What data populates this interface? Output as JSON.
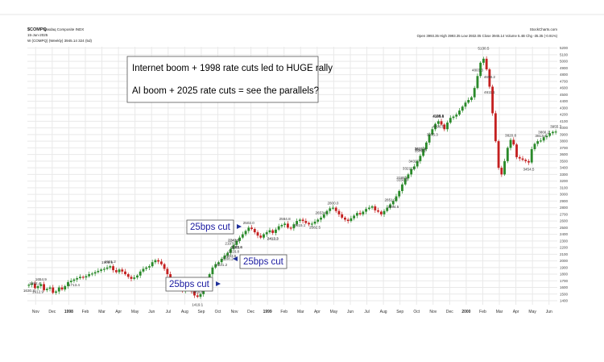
{
  "header": {
    "symbol": "$COMPQ",
    "exchange": "Nasdaq Composite INDX",
    "date": "15-Jun-2025",
    "ohlc": "Open 3993.35  High 3993.35  Low 3932.05  Close 3945.14  Volume 5.4B  Chg -35.35 (-0.91%)",
    "indicator": "W (COMPQ) (Weekly) 3945.14  324 (5d)",
    "source": "StockCharts.com"
  },
  "annotation": {
    "line1": "Internet boom + 1998 rate cuts led to HUGE rally",
    "line2": "AI boom + 2025 rate cuts = see the parallels?"
  },
  "cut_labels": [
    "25bps cut",
    "25bps cut",
    "25bps cut"
  ],
  "colors": {
    "up": "#2a8a2a",
    "down": "#c42020",
    "cut_text": "#1a1aa0",
    "arrow": "#1f2f9a"
  },
  "chart_data": {
    "type": "candlestick",
    "title": "",
    "ylim": [
      1340,
      5220
    ],
    "y_ticks": [
      1400,
      1500,
      1600,
      1700,
      1800,
      1900,
      2000,
      2100,
      2200,
      2300,
      2400,
      2500,
      2600,
      2700,
      2800,
      2900,
      3000,
      3100,
      3200,
      3300,
      3400,
      3500,
      3600,
      3700,
      3800,
      3900,
      4000,
      4100,
      4200,
      4300,
      4400,
      4500,
      4600,
      4700,
      4800,
      4900,
      5000,
      5100,
      5200
    ],
    "x_ticks": [
      "Nov",
      "Dec",
      "1998",
      "Feb",
      "Mar",
      "Apr",
      "May",
      "Jun",
      "Jul",
      "Aug",
      "Sep",
      "Oct",
      "Nov",
      "Dec",
      "1999",
      "Feb",
      "Mar",
      "Apr",
      "May",
      "Jun",
      "Jul",
      "Aug",
      "Sep",
      "Oct",
      "Nov",
      "Dec",
      "2000",
      "Feb",
      "Mar",
      "Apr",
      "May",
      "Jun"
    ],
    "x_ticks_bold": [
      "1998",
      "1999",
      "2000"
    ],
    "weekly_close": [
      1640,
      1660,
      1590,
      1620,
      1650,
      1560,
      1580,
      1600,
      1520,
      1540,
      1600,
      1570,
      1620,
      1680,
      1700,
      1720,
      1740,
      1760,
      1750,
      1770,
      1800,
      1810,
      1830,
      1850,
      1870,
      1880,
      1900,
      1920,
      1860,
      1830,
      1870,
      1840,
      1800,
      1760,
      1730,
      1750,
      1780,
      1840,
      1880,
      1900,
      1920,
      1980,
      2010,
      1990,
      1950,
      1880,
      1800,
      1700,
      1690,
      1650,
      1600,
      1550,
      1580,
      1620,
      1540,
      1480,
      1460,
      1500,
      1600,
      1700,
      1800,
      1900,
      1950,
      1980,
      2030,
      2080,
      2120,
      2180,
      2240,
      2300,
      2350,
      2400,
      2450,
      2500,
      2480,
      2430,
      2380,
      2350,
      2400,
      2430,
      2460,
      2420,
      2470,
      2520,
      2540,
      2560,
      2500,
      2490,
      2550,
      2600,
      2620,
      2600,
      2570,
      2550,
      2560,
      2590,
      2620,
      2650,
      2700,
      2750,
      2790,
      2800,
      2750,
      2700,
      2650,
      2620,
      2600,
      2640,
      2680,
      2720,
      2700,
      2740,
      2780,
      2800,
      2820,
      2760,
      2740,
      2700,
      2750,
      2800,
      2850,
      2900,
      2970,
      3050,
      3150,
      3240,
      3300,
      3380,
      3420,
      3500,
      3580,
      3680,
      3780,
      3900,
      3980,
      4060,
      4100,
      4050,
      3980,
      4080,
      4150,
      4170,
      4200,
      4260,
      4320,
      4380,
      4420,
      4460,
      4600,
      4780,
      4980,
      5040,
      4880,
      4620,
      4220,
      3800,
      3400,
      3300,
      3500,
      3700,
      3820,
      3750,
      3560,
      3540,
      3520,
      3500,
      3480,
      3680,
      3760,
      3800,
      3810,
      3860,
      3880,
      3920,
      3940,
      3945
    ],
    "price_labels": [
      "1654.9",
      "1592.4",
      "1469.8",
      "1630.3",
      "2021.2",
      "1908.5",
      "1921.2",
      "1713.4",
      "1612.9",
      "1419.1",
      "2153.5",
      "2108.2",
      "2197.2",
      "2282.4",
      "2216.8",
      "2241.5",
      "2285.0",
      "2242.0",
      "2412.3",
      "2413.2",
      "2502.0",
      "2564.8",
      "2653.4",
      "2582.5",
      "2615.1",
      "2800.0",
      "2851.7",
      "2894.5",
      "3150.3",
      "3432.7",
      "3621.1",
      "3820.8",
      "4101.6",
      "4803.3",
      "4698.2",
      "5130.5",
      "4611.1",
      "3321.3",
      "3589.2",
      "3813.4",
      "3454.5",
      "3185.6",
      "3612.5",
      "4108.8",
      "3866.2",
      "3955.7",
      "4096.5",
      "3975.3",
      "4116.1"
    ]
  }
}
